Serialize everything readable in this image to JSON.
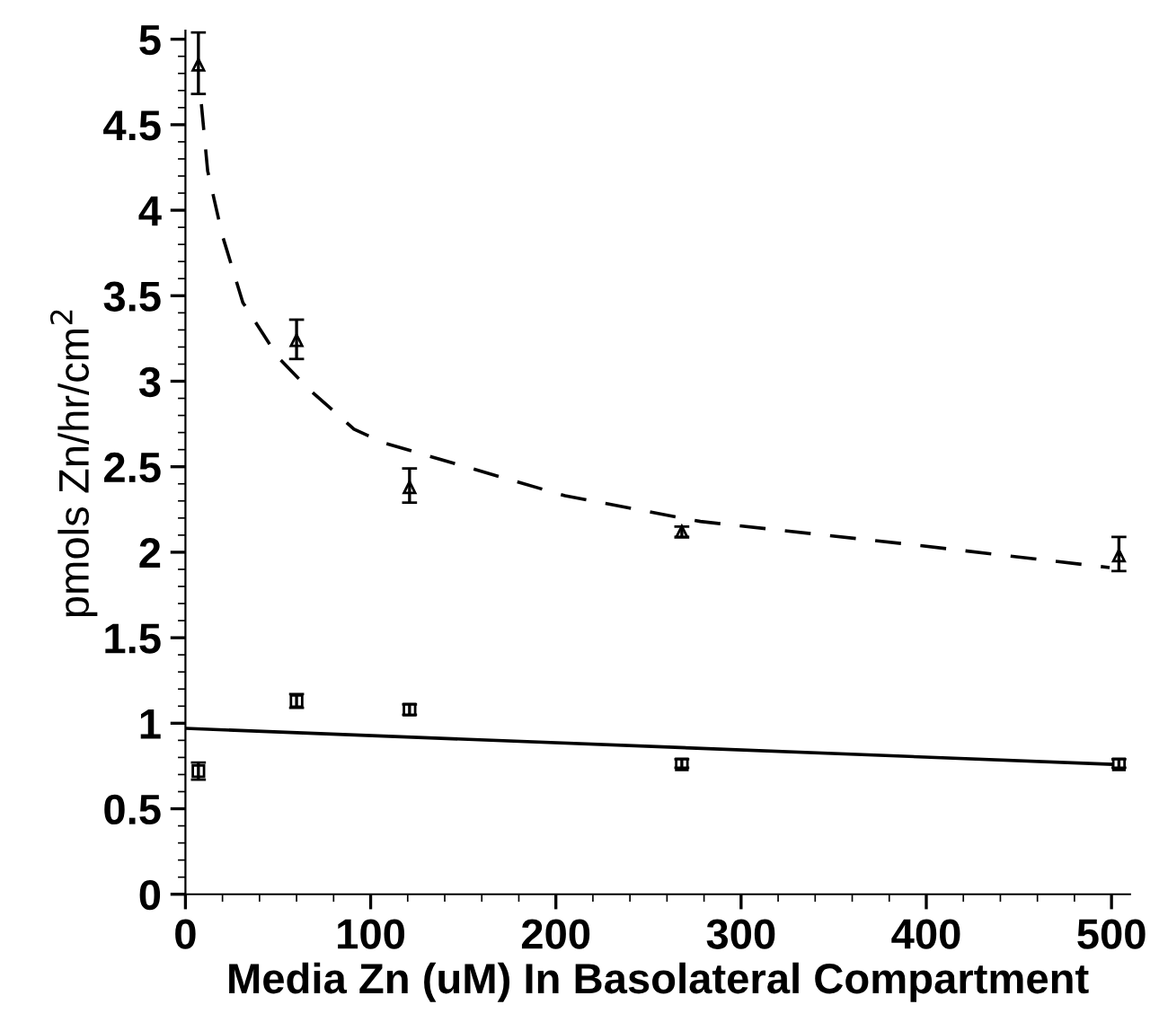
{
  "chart_data": {
    "type": "scatter",
    "xlabel": "Media Zn (uM) In Basolateral Compartment",
    "ylabel": "pmols Zn/hr/cm$^{2}$",
    "xlim": [
      0,
      510
    ],
    "xticks": [
      0,
      100,
      200,
      300,
      400,
      500
    ],
    "ylim": [
      0,
      5.05
    ],
    "yticks": [
      0,
      0.5,
      1,
      1.5,
      2,
      2.5,
      3,
      3.5,
      4,
      4.5,
      5
    ],
    "grid": false,
    "legend": false,
    "series": [
      {
        "marker": "triangle",
        "color": "#000000",
        "x": [
          7,
          60,
          121,
          268,
          504
        ],
        "values": [
          4.85,
          3.24,
          2.38,
          2.12,
          1.98
        ],
        "errors": [
          [
            4.68,
            5.04
          ],
          [
            3.13,
            3.36
          ],
          [
            2.29,
            2.49
          ],
          [
            2.09,
            2.15
          ],
          [
            1.89,
            2.09
          ]
        ]
      },
      {
        "marker": "square",
        "color": "#000000",
        "x": [
          7,
          60,
          121,
          268,
          504
        ],
        "values": [
          0.72,
          1.13,
          1.08,
          0.76,
          0.76
        ],
        "errors": [
          [
            0.67,
            0.77
          ],
          [
            1.09,
            1.17
          ],
          [
            1.05,
            1.11
          ],
          [
            0.74,
            0.79
          ],
          [
            0.74,
            0.79
          ]
        ]
      },
      {
        "type": "line",
        "line_style": "dashed",
        "marker": "none",
        "color": "#000000",
        "x": [
          8.6,
          12,
          20,
          31,
          50,
          66,
          91,
          107,
          205,
          278,
          396,
          499
        ],
        "values": [
          4.62,
          4.23,
          3.85,
          3.46,
          3.14,
          2.96,
          2.72,
          2.64,
          2.33,
          2.18,
          2.04,
          1.91
        ]
      },
      {
        "type": "line",
        "line_style": "solid",
        "marker": "none",
        "color": "#000000",
        "x": [
          0,
          500
        ],
        "values": [
          0.97,
          0.76
        ]
      }
    ]
  }
}
